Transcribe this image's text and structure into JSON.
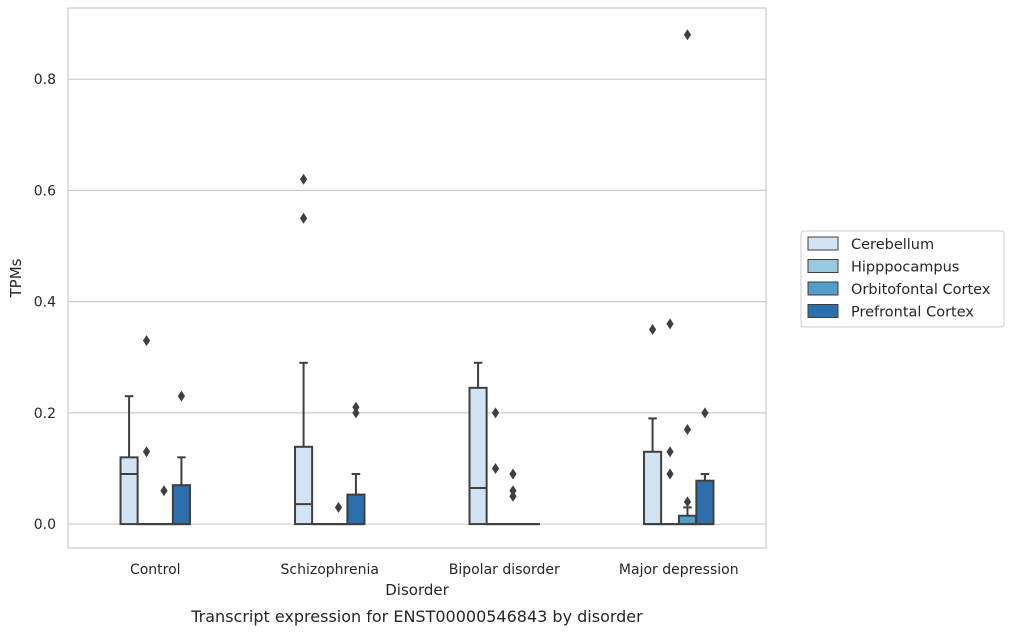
{
  "chart_data": {
    "type": "box",
    "caption": "Transcript expression for ENST00000546843 by disorder",
    "xlabel": "Disorder",
    "ylabel": "TPMs",
    "ylim": [
      -0.043,
      0.928
    ],
    "yticks": [
      0.0,
      0.2,
      0.4,
      0.6,
      0.8
    ],
    "ytick_labels": [
      "0.0",
      "0.2",
      "0.4",
      "0.6",
      "0.8"
    ],
    "grid": "horizontal",
    "legend_position": "right",
    "categories": [
      "Control",
      "Schizophrenia",
      "Bipolar disorder",
      "Major depression"
    ],
    "series": [
      {
        "name": "Cerebellum",
        "color": "#d2e3f3",
        "boxes": [
          {
            "q1": 0.0,
            "median": 0.09,
            "q3": 0.12,
            "whisker_low": 0.0,
            "whisker_high": 0.23,
            "outliers": []
          },
          {
            "q1": 0.0,
            "median": 0.036,
            "q3": 0.139,
            "whisker_low": 0.0,
            "whisker_high": 0.29,
            "outliers": [
              0.55,
              0.62
            ]
          },
          {
            "q1": 0.0,
            "median": 0.065,
            "q3": 0.245,
            "whisker_low": 0.0,
            "whisker_high": 0.29,
            "outliers": []
          },
          {
            "q1": 0.0,
            "median": 0.0,
            "q3": 0.13,
            "whisker_low": 0.0,
            "whisker_high": 0.19,
            "outliers": [
              0.35
            ]
          }
        ]
      },
      {
        "name": "Hipppocampus",
        "color": "#9ac8e0",
        "boxes": [
          {
            "q1": 0.0,
            "median": 0.0,
            "q3": 0.0,
            "whisker_low": 0.0,
            "whisker_high": 0.0,
            "outliers": [
              0.13,
              0.33
            ]
          },
          {
            "q1": 0.0,
            "median": 0.0,
            "q3": 0.0,
            "whisker_low": 0.0,
            "whisker_high": 0.0,
            "outliers": []
          },
          {
            "q1": 0.0,
            "median": 0.0,
            "q3": 0.0,
            "whisker_low": 0.0,
            "whisker_high": 0.0,
            "outliers": [
              0.1,
              0.2
            ]
          },
          {
            "q1": 0.0,
            "median": 0.0,
            "q3": 0.0,
            "whisker_low": 0.0,
            "whisker_high": 0.0,
            "outliers": [
              0.09,
              0.13,
              0.36
            ]
          }
        ]
      },
      {
        "name": "Orbitofontal Cortex",
        "color": "#529dcc",
        "boxes": [
          {
            "q1": 0.0,
            "median": 0.0,
            "q3": 0.0,
            "whisker_low": 0.0,
            "whisker_high": 0.0,
            "outliers": [
              0.06
            ]
          },
          {
            "q1": 0.0,
            "median": 0.0,
            "q3": 0.0,
            "whisker_low": 0.0,
            "whisker_high": 0.0,
            "outliers": [
              0.03
            ]
          },
          {
            "q1": 0.0,
            "median": 0.0,
            "q3": 0.0,
            "whisker_low": 0.0,
            "whisker_high": 0.0,
            "outliers": [
              0.05,
              0.06,
              0.09
            ]
          },
          {
            "q1": 0.0,
            "median": 0.0,
            "q3": 0.015,
            "whisker_low": 0.0,
            "whisker_high": 0.03,
            "outliers": [
              0.04,
              0.17,
              0.88
            ]
          }
        ]
      },
      {
        "name": "Prefrontal Cortex",
        "color": "#2d6fad",
        "boxes": [
          {
            "q1": 0.0,
            "median": 0.0,
            "q3": 0.07,
            "whisker_low": 0.0,
            "whisker_high": 0.12,
            "outliers": [
              0.23
            ]
          },
          {
            "q1": 0.0,
            "median": 0.0,
            "q3": 0.053,
            "whisker_low": 0.0,
            "whisker_high": 0.09,
            "outliers": [
              0.2,
              0.21
            ]
          },
          {
            "q1": 0.0,
            "median": 0.0,
            "q3": 0.0,
            "whisker_low": 0.0,
            "whisker_high": 0.0,
            "outliers": []
          },
          {
            "q1": 0.0,
            "median": 0.0,
            "q3": 0.078,
            "whisker_low": 0.0,
            "whisker_high": 0.09,
            "outliers": [
              0.2
            ]
          }
        ]
      }
    ]
  }
}
